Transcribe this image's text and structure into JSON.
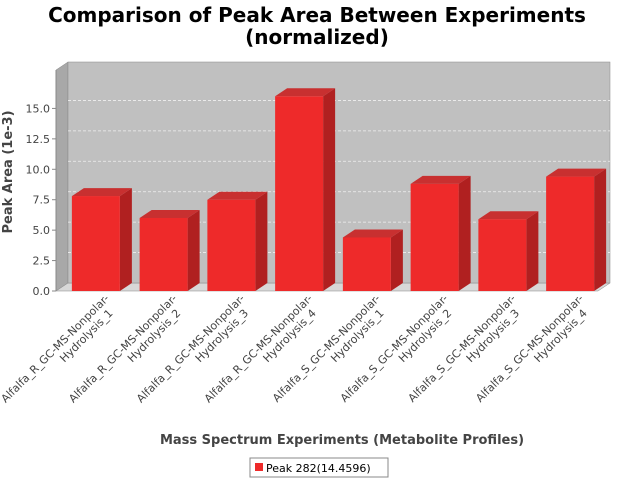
{
  "chart_data": {
    "type": "bar",
    "title_line1": "Comparison of Peak Area Between Experiments",
    "title_line2": "(normalized)",
    "xlabel": "Mass Spectrum Experiments (Metabolite Profiles)",
    "ylabel": "Peak Area (1e-3)",
    "ylim": [
      0,
      17.5
    ],
    "yticks": [
      "0.0",
      "2.5",
      "5.0",
      "7.5",
      "10.0",
      "12.5",
      "15.0"
    ],
    "grid": true,
    "legend_position": "bottom",
    "categories": [
      [
        "Alfalfa_R_GC-MS-Nonpolar-",
        "Hydrolysis_1"
      ],
      [
        "Alfalfa_R_GC-MS-Nonpolar-",
        "Hydrolysis_2"
      ],
      [
        "Alfalfa_R_GC-MS-Nonpolar-",
        "Hydrolysis_3"
      ],
      [
        "Alfalfa_R_GC-MS-Nonpolar-",
        "Hydrolysis_4"
      ],
      [
        "Alfalfa_S_GC-MS-Nonpolar-",
        "Hydrolysis_1"
      ],
      [
        "Alfalfa_S_GC-MS-Nonpolar-",
        "Hydrolysis_2"
      ],
      [
        "Alfalfa_S_GC-MS-Nonpolar-",
        "Hydrolysis_3"
      ],
      [
        "Alfalfa_S_GC-MS-Nonpolar-",
        "Hydrolysis_4"
      ]
    ],
    "series": [
      {
        "name": "Peak 282(14.4596)",
        "color": "#ee2a2a",
        "values": [
          7.8,
          6.0,
          7.5,
          16.0,
          4.4,
          8.8,
          5.9,
          9.4
        ]
      }
    ],
    "colors": {
      "plot_background": "#c0c0c0",
      "plot_side": "#a8a8a8",
      "bar_side": "#b02020",
      "bar_top": "#c83030"
    }
  }
}
